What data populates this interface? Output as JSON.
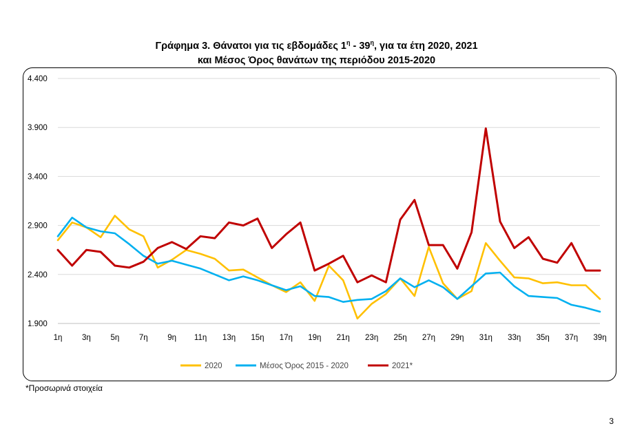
{
  "title": {
    "line1_pre": "Γράφημα 3. Θάνατοι για τις εβδομάδες 1",
    "line1_sup1": "η",
    "line1_mid": " - 39",
    "line1_sup2": "η",
    "line1_post": ", για τα έτη 2020, 2021",
    "line2": "και Μέσος Όρος θανάτων της περιόδου 2015-2020"
  },
  "footnote": "*Προσωρινά στοιχεία",
  "page_number": "3",
  "chart_data": {
    "type": "line",
    "title": "Γράφημα 3. Θάνατοι για τις εβδομάδες 1η - 39η, για τα έτη 2020, 2021 και Μέσος Όρος θανάτων της περιόδου 2015-2020",
    "xlabel": "",
    "ylabel": "",
    "ylim": [
      1900,
      4400
    ],
    "yticks": [
      1900,
      2400,
      2900,
      3400,
      3900,
      4400
    ],
    "ytick_labels": [
      "1.900",
      "2.400",
      "2.900",
      "3.400",
      "3.900",
      "4.400"
    ],
    "x_tick_labels": [
      "1η",
      "3η",
      "5η",
      "7η",
      "9η",
      "11η",
      "13η",
      "15η",
      "17η",
      "19η",
      "21η",
      "23η",
      "25η",
      "27η",
      "29η",
      "31η",
      "33η",
      "35η",
      "37η",
      "39η"
    ],
    "x": [
      1,
      2,
      3,
      4,
      5,
      6,
      7,
      8,
      9,
      10,
      11,
      12,
      13,
      14,
      15,
      16,
      17,
      18,
      19,
      20,
      21,
      22,
      23,
      24,
      25,
      26,
      27,
      28,
      29,
      30,
      31,
      32,
      33,
      34,
      35,
      36,
      37,
      38,
      39
    ],
    "grid": "horizontal",
    "legend_position": "bottom",
    "series": [
      {
        "name": "2020",
        "color": "#FFC000",
        "values": [
          2750,
          2930,
          2880,
          2780,
          3000,
          2860,
          2790,
          2470,
          2550,
          2650,
          2610,
          2560,
          2440,
          2450,
          2370,
          2290,
          2220,
          2320,
          2130,
          2490,
          2340,
          1950,
          2100,
          2200,
          2360,
          2180,
          2680,
          2310,
          2150,
          2230,
          2720,
          2540,
          2370,
          2360,
          2310,
          2320,
          2290,
          2290,
          2150
        ]
      },
      {
        "name": "Μέσος Όρος 2015 - 2020",
        "color": "#00B0F0",
        "values": [
          2790,
          2980,
          2880,
          2840,
          2820,
          2710,
          2590,
          2510,
          2540,
          2500,
          2460,
          2400,
          2340,
          2380,
          2340,
          2290,
          2240,
          2280,
          2180,
          2170,
          2120,
          2140,
          2150,
          2230,
          2360,
          2270,
          2340,
          2270,
          2150,
          2280,
          2410,
          2420,
          2280,
          2180,
          2170,
          2160,
          2090,
          2060,
          2020
        ]
      },
      {
        "name": "2021*",
        "color": "#C00000",
        "values": [
          2650,
          2490,
          2650,
          2630,
          2490,
          2470,
          2530,
          2670,
          2730,
          2660,
          2790,
          2770,
          2930,
          2900,
          2970,
          2670,
          2810,
          2930,
          2440,
          2510,
          2590,
          2320,
          2390,
          2320,
          2960,
          3160,
          2700,
          2700,
          2460,
          2830,
          3890,
          2940,
          2670,
          2780,
          2560,
          2520,
          2720,
          2440,
          2440
        ]
      }
    ]
  }
}
